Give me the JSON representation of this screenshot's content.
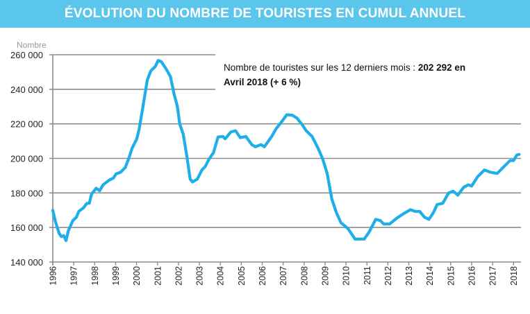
{
  "header": {
    "title": "ÉVOLUTION DU NOMBRE DE TOURISTES EN CUMUL ANNUEL"
  },
  "annotation": {
    "text_regular": "Nombre de touristes sur les 12 derniers mois : ",
    "text_bold_1": "202 292 en",
    "text_bold_2": "Avril 2018 (+ 6 %)"
  },
  "chart_data": {
    "type": "line",
    "title": "ÉVOLUTION DU NOMBRE DE TOURISTES EN CUMUL ANNUEL",
    "ylabel": "Nombre",
    "xlabel": "",
    "ylim": [
      140000,
      260000
    ],
    "xlim": [
      1996,
      2018.3
    ],
    "grid": "horizontal",
    "line_color": "#1eaee8",
    "yticks": [
      140000,
      160000,
      180000,
      200000,
      220000,
      240000,
      260000
    ],
    "ytick_labels": [
      "140 000",
      "160 000",
      "180 000",
      "200 000",
      "220 000",
      "240 000",
      "260 000"
    ],
    "xtick_labels": [
      "1996",
      "1997",
      "1998",
      "1999",
      "2000",
      "2001",
      "2002",
      "2003",
      "2004",
      "2005",
      "2006",
      "2007",
      "2008",
      "2009",
      "2010",
      "2011",
      "2012",
      "2013",
      "2014",
      "2015",
      "2016",
      "2017",
      "2018"
    ],
    "series": [
      {
        "points": [
          [
            1996.0,
            170000
          ],
          [
            1996.13,
            163300
          ],
          [
            1996.3,
            156700
          ],
          [
            1996.41,
            154700
          ],
          [
            1996.52,
            155300
          ],
          [
            1996.63,
            152400
          ],
          [
            1996.74,
            158000
          ],
          [
            1996.96,
            164000
          ],
          [
            1997.13,
            166000
          ],
          [
            1997.24,
            169300
          ],
          [
            1997.46,
            171300
          ],
          [
            1997.63,
            174000
          ],
          [
            1997.74,
            174000
          ],
          [
            1997.85,
            179300
          ],
          [
            1998.07,
            182700
          ],
          [
            1998.24,
            181300
          ],
          [
            1998.4,
            184700
          ],
          [
            1998.68,
            187300
          ],
          [
            1998.9,
            188700
          ],
          [
            1999.02,
            191000
          ],
          [
            1999.24,
            192000
          ],
          [
            1999.46,
            194700
          ],
          [
            1999.63,
            200000
          ],
          [
            1999.79,
            206000
          ],
          [
            2000.01,
            211300
          ],
          [
            2000.12,
            216700
          ],
          [
            2000.29,
            228700
          ],
          [
            2000.51,
            245300
          ],
          [
            2000.68,
            250700
          ],
          [
            2000.9,
            253300
          ],
          [
            2001.03,
            256700
          ],
          [
            2001.18,
            256000
          ],
          [
            2001.4,
            252000
          ],
          [
            2001.62,
            247300
          ],
          [
            2001.79,
            237300
          ],
          [
            2001.95,
            230000
          ],
          [
            2002.06,
            220000
          ],
          [
            2002.23,
            214000
          ],
          [
            2002.4,
            201300
          ],
          [
            2002.56,
            188000
          ],
          [
            2002.67,
            186300
          ],
          [
            2002.9,
            188000
          ],
          [
            2003.12,
            193300
          ],
          [
            2003.28,
            195300
          ],
          [
            2003.45,
            199300
          ],
          [
            2003.67,
            203300
          ],
          [
            2003.89,
            212400
          ],
          [
            2004.12,
            212700
          ],
          [
            2004.23,
            211300
          ],
          [
            2004.5,
            215300
          ],
          [
            2004.73,
            216000
          ],
          [
            2004.95,
            212000
          ],
          [
            2005.22,
            212700
          ],
          [
            2005.5,
            208000
          ],
          [
            2005.67,
            206700
          ],
          [
            2005.94,
            208000
          ],
          [
            2006.1,
            206700
          ],
          [
            2006.45,
            212700
          ],
          [
            2006.67,
            217300
          ],
          [
            2006.9,
            220700
          ],
          [
            2007.17,
            225300
          ],
          [
            2007.44,
            225000
          ],
          [
            2007.66,
            223300
          ],
          [
            2007.88,
            220000
          ],
          [
            2008.1,
            216000
          ],
          [
            2008.38,
            212700
          ],
          [
            2008.66,
            206000
          ],
          [
            2008.88,
            200000
          ],
          [
            2009.1,
            191300
          ],
          [
            2009.32,
            176700
          ],
          [
            2009.54,
            168700
          ],
          [
            2009.76,
            162700
          ],
          [
            2010.1,
            159300
          ],
          [
            2010.43,
            153300
          ],
          [
            2010.87,
            153300
          ],
          [
            2011.1,
            157300
          ],
          [
            2011.42,
            164700
          ],
          [
            2011.64,
            164000
          ],
          [
            2011.8,
            162000
          ],
          [
            2012.08,
            162000
          ],
          [
            2012.41,
            165300
          ],
          [
            2012.75,
            168000
          ],
          [
            2013.08,
            170300
          ],
          [
            2013.3,
            169300
          ],
          [
            2013.52,
            169300
          ],
          [
            2013.74,
            166000
          ],
          [
            2013.96,
            164700
          ],
          [
            2014.18,
            168700
          ],
          [
            2014.35,
            173300
          ],
          [
            2014.62,
            174000
          ],
          [
            2014.9,
            180000
          ],
          [
            2015.12,
            181000
          ],
          [
            2015.34,
            178700
          ],
          [
            2015.62,
            183300
          ],
          [
            2015.84,
            184700
          ],
          [
            2016.0,
            184000
          ],
          [
            2016.28,
            189300
          ],
          [
            2016.61,
            193300
          ],
          [
            2016.89,
            192000
          ],
          [
            2017.22,
            191300
          ],
          [
            2017.5,
            194700
          ],
          [
            2017.83,
            198700
          ],
          [
            2018.0,
            198700
          ],
          [
            2018.16,
            202000
          ],
          [
            2018.27,
            202292
          ]
        ]
      }
    ]
  }
}
